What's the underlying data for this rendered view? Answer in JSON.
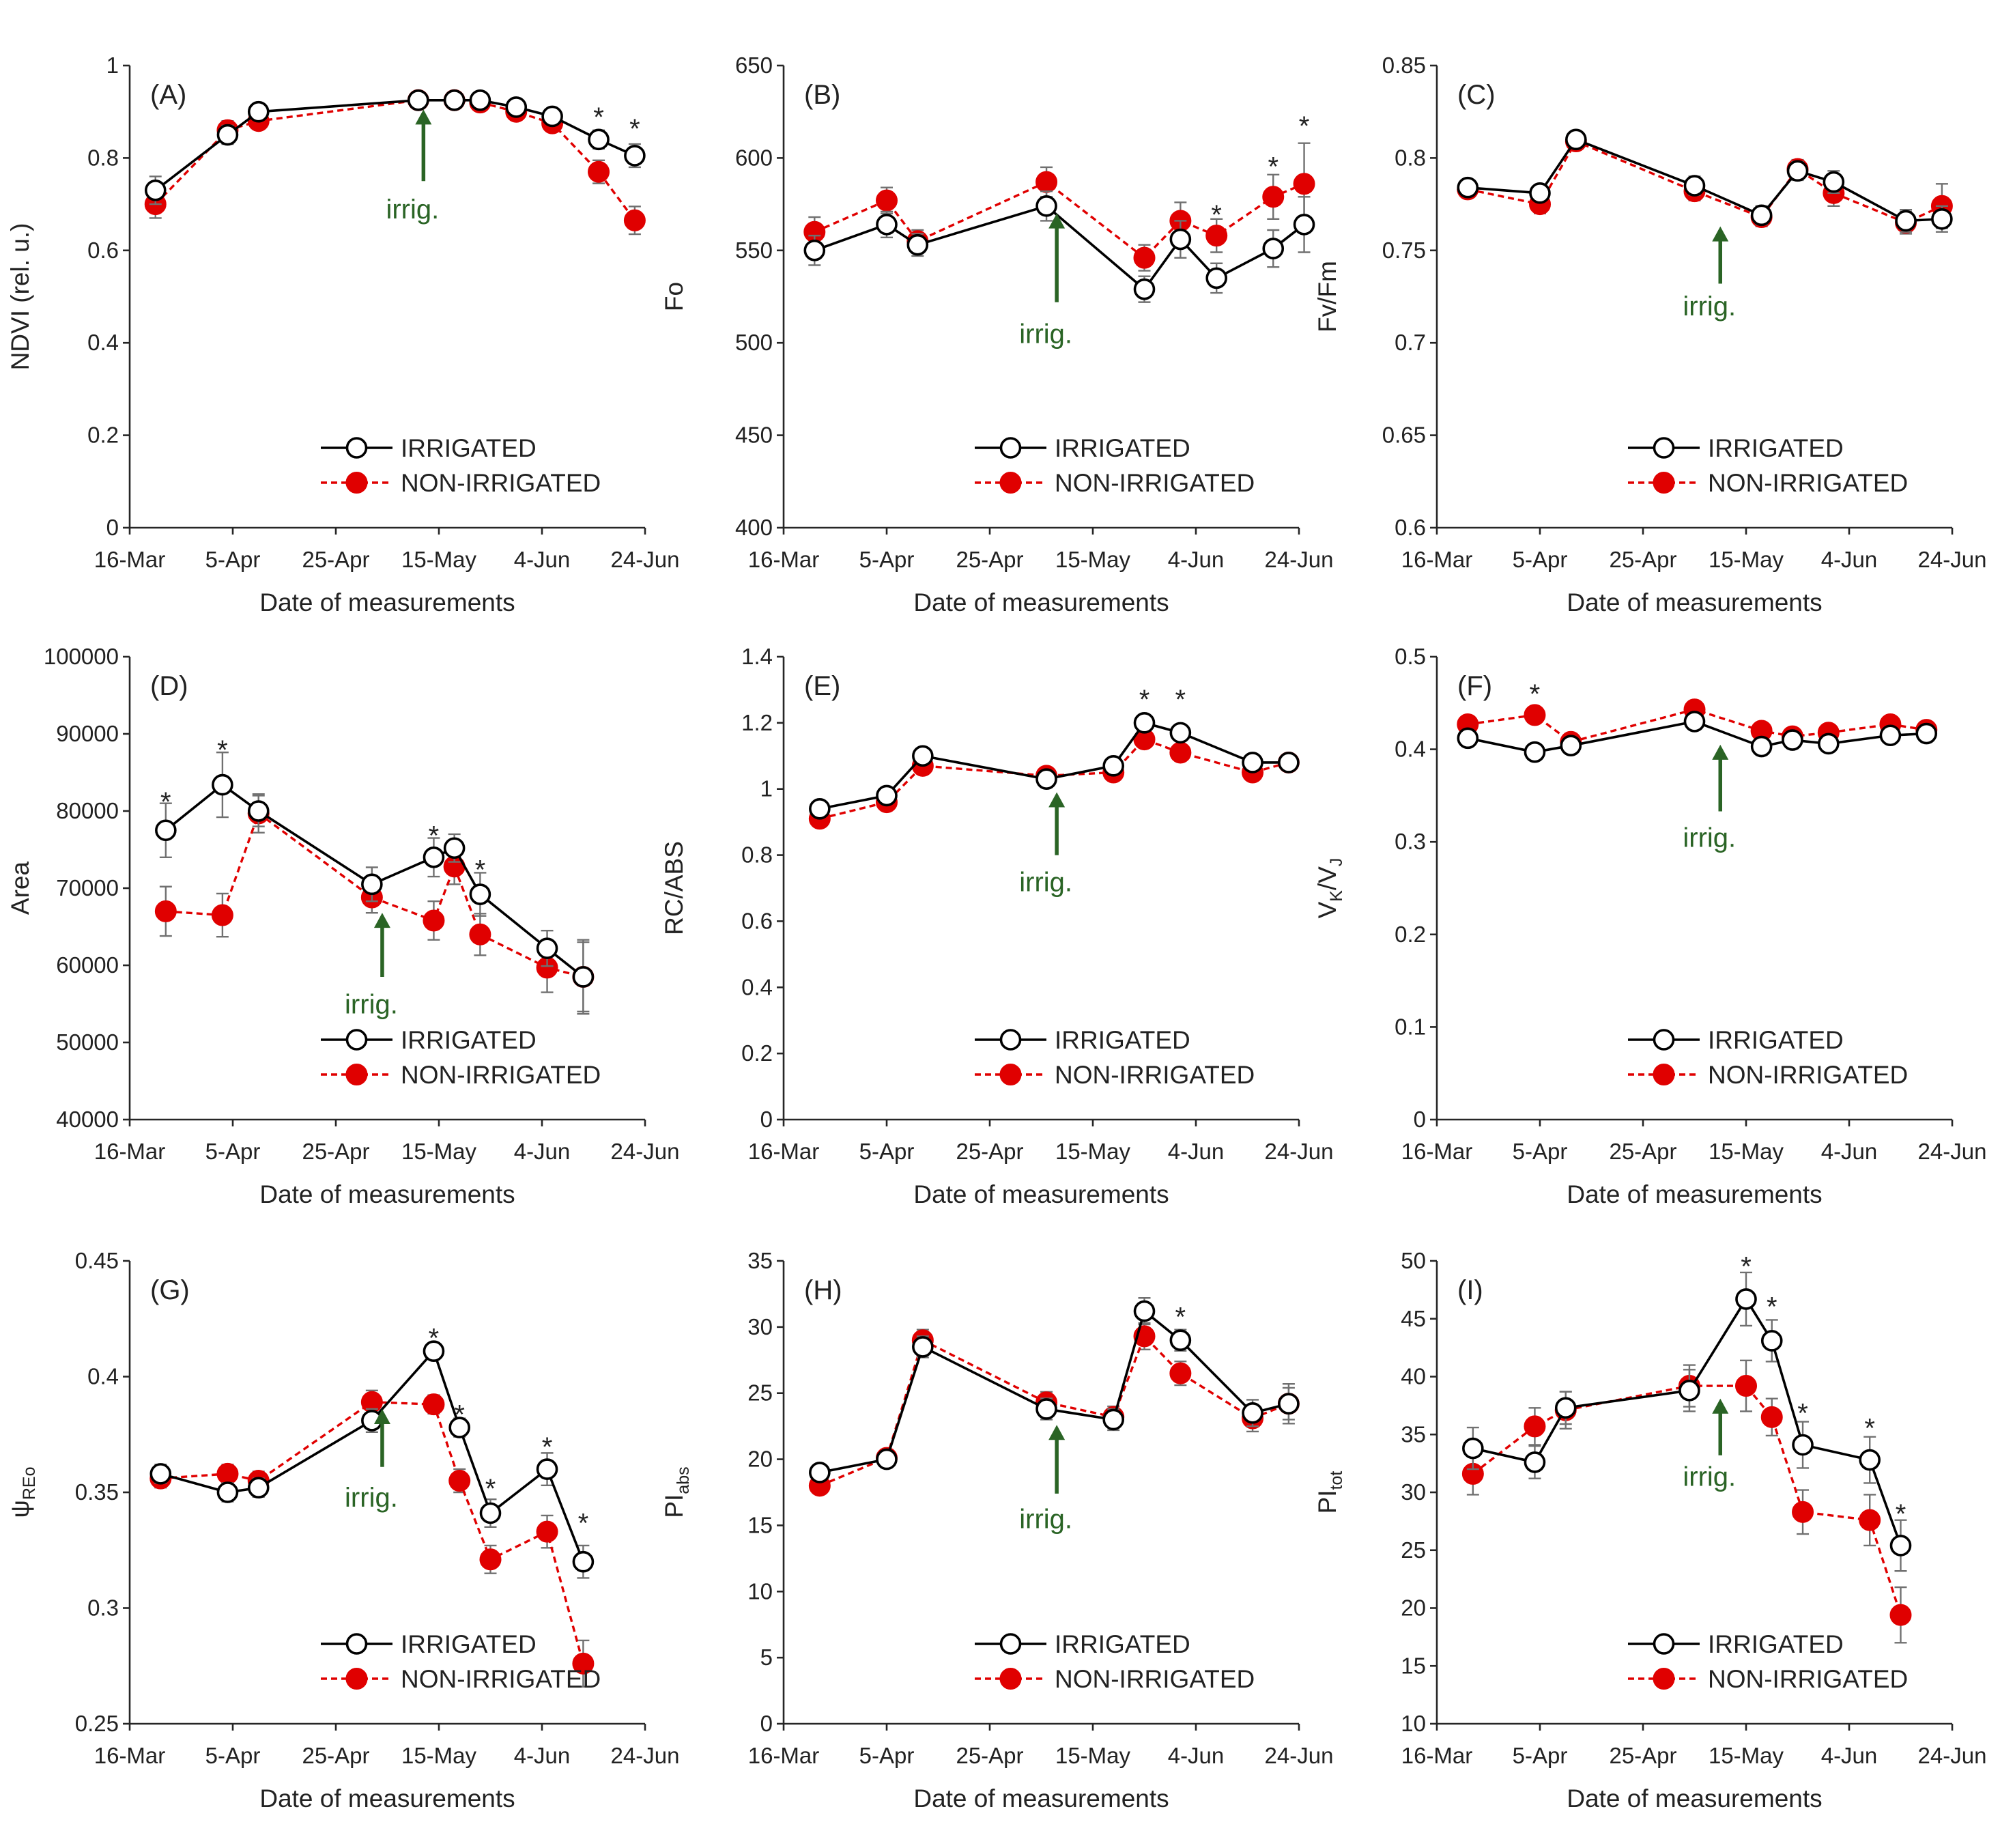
{
  "figure": {
    "x_axis_label": "Date of measurements",
    "x_ticks": [
      "16-Mar",
      "5-Apr",
      "25-Apr",
      "15-May",
      "4-Jun",
      "24-Jun"
    ],
    "legend": {
      "irrigated": "IRRIGATED",
      "non_irrigated": "NON-IRRIGATED"
    },
    "annotation_text": "irrig.",
    "significance_marker": "*",
    "colors": {
      "irrigated_line": "#000000",
      "irrigated_marker_fill": "#ffffff",
      "non_irrigated": "#e00000",
      "arrow": "#2a6425",
      "axis": "#262626",
      "error_bar": "#707070"
    }
  },
  "chart_data": [
    {
      "type": "line",
      "panel": "(A)",
      "ylabel": "NDVI (rel. u.)",
      "ylabel_main": "NDVI (rel. u.)",
      "ylabel_sub": "",
      "ylim": [
        0,
        1
      ],
      "yticks": [
        "0",
        "0.2",
        "0.4",
        "0.6",
        "0.8",
        "1"
      ],
      "ytick_values": [
        0,
        0.2,
        0.4,
        0.6,
        0.8,
        1
      ],
      "xlim": [
        0,
        100
      ],
      "x_tick_days": [
        0,
        20,
        40,
        60,
        80,
        100
      ],
      "series": [
        {
          "name": "IRRIGATED",
          "x": [
            5,
            19,
            25,
            56,
            63,
            68,
            75,
            82,
            91,
            98
          ],
          "y": [
            0.73,
            0.85,
            0.9,
            0.925,
            0.925,
            0.925,
            0.91,
            0.89,
            0.84,
            0.805
          ],
          "err": [
            0.03,
            0.02,
            0.015,
            0.01,
            0.01,
            0.01,
            0.015,
            0.015,
            0.02,
            0.025
          ]
        },
        {
          "name": "NON-IRRIGATED",
          "x": [
            5,
            19,
            25,
            56,
            63,
            68,
            75,
            82,
            91,
            98
          ],
          "y": [
            0.7,
            0.86,
            0.88,
            0.925,
            0.925,
            0.92,
            0.9,
            0.875,
            0.77,
            0.665
          ],
          "err": [
            0.03,
            0.02,
            0.015,
            0.01,
            0.01,
            0.01,
            0.015,
            0.015,
            0.025,
            0.03
          ]
        }
      ],
      "stars": [
        {
          "x": 91,
          "y": 0.895
        },
        {
          "x": 98,
          "y": 0.87
        }
      ],
      "irrigation_arrow": {
        "x": 57,
        "y_top": 0.905,
        "y_bottom": 0.75,
        "label_y": 0.69
      }
    },
    {
      "type": "line",
      "panel": "(B)",
      "ylabel": "Fo",
      "ylabel_main": "Fo",
      "ylabel_sub": "",
      "ylim": [
        400,
        650
      ],
      "yticks": [
        "400",
        "450",
        "500",
        "550",
        "600",
        "650"
      ],
      "ytick_values": [
        400,
        450,
        500,
        550,
        600,
        650
      ],
      "xlim": [
        0,
        100
      ],
      "x_tick_days": [
        0,
        20,
        40,
        60,
        80,
        100
      ],
      "series": [
        {
          "name": "IRRIGATED",
          "x": [
            6,
            20,
            26,
            51,
            70,
            77,
            84,
            95,
            101
          ],
          "y": [
            550,
            564,
            553,
            574,
            529,
            556,
            535,
            551,
            564
          ],
          "err": [
            8,
            7,
            6,
            8,
            7,
            10,
            8,
            10,
            15
          ]
        },
        {
          "name": "NON-IRRIGATED",
          "x": [
            6,
            20,
            26,
            51,
            70,
            77,
            84,
            95,
            101
          ],
          "y": [
            560,
            577,
            555,
            587,
            546,
            566,
            558,
            579,
            586
          ],
          "err": [
            8,
            7,
            6,
            8,
            7,
            10,
            9,
            12,
            22
          ]
        }
      ],
      "stars": [
        {
          "x": 84,
          "y": 571
        },
        {
          "x": 95,
          "y": 597
        },
        {
          "x": 101,
          "y": 619
        }
      ],
      "irrigation_arrow": {
        "x": 53,
        "y_top": 570,
        "y_bottom": 522,
        "label_y": 505
      }
    },
    {
      "type": "line",
      "panel": "(C)",
      "ylabel": "Fv/Fm",
      "ylabel_main": "Fv/Fm",
      "ylabel_sub": "",
      "ylim": [
        0.6,
        0.85
      ],
      "yticks": [
        "0.6",
        "0.65",
        "0.7",
        "0.75",
        "0.8",
        "0.85"
      ],
      "ytick_values": [
        0.6,
        0.65,
        0.7,
        0.75,
        0.8,
        0.85
      ],
      "xlim": [
        0,
        100
      ],
      "x_tick_days": [
        0,
        20,
        40,
        60,
        80,
        100
      ],
      "series": [
        {
          "name": "IRRIGATED",
          "x": [
            6,
            20,
            27,
            50,
            63,
            70,
            77,
            91,
            98
          ],
          "y": [
            0.784,
            0.781,
            0.81,
            0.785,
            0.769,
            0.793,
            0.787,
            0.766,
            0.767
          ],
          "err": [
            0.004,
            0.004,
            0.003,
            0.005,
            0.005,
            0.005,
            0.006,
            0.006,
            0.007
          ]
        },
        {
          "name": "NON-IRRIGATED",
          "x": [
            6,
            20,
            27,
            50,
            63,
            70,
            77,
            91,
            98
          ],
          "y": [
            0.783,
            0.775,
            0.809,
            0.782,
            0.768,
            0.794,
            0.781,
            0.765,
            0.774
          ],
          "err": [
            0.004,
            0.005,
            0.003,
            0.005,
            0.005,
            0.005,
            0.007,
            0.006,
            0.012
          ]
        }
      ],
      "stars": [],
      "irrigation_arrow": {
        "x": 55,
        "y_top": 0.763,
        "y_bottom": 0.732,
        "label_y": 0.72
      }
    },
    {
      "type": "line",
      "panel": "(D)",
      "ylabel": "Area",
      "ylabel_main": "Area",
      "ylabel_sub": "",
      "ylim": [
        40000,
        100000
      ],
      "yticks": [
        "40000",
        "50000",
        "60000",
        "70000",
        "80000",
        "90000",
        "100000"
      ],
      "ytick_values": [
        40000,
        50000,
        60000,
        70000,
        80000,
        90000,
        100000
      ],
      "xlim": [
        0,
        100
      ],
      "x_tick_days": [
        0,
        20,
        40,
        60,
        80,
        100
      ],
      "series": [
        {
          "name": "IRRIGATED",
          "x": [
            7,
            18,
            25,
            47,
            59,
            63,
            68,
            81,
            88
          ],
          "y": [
            77500,
            83400,
            80000,
            70500,
            74000,
            75200,
            69200,
            62200,
            58500
          ],
          "err": [
            3500,
            4200,
            2000,
            2200,
            2500,
            1800,
            2800,
            2300,
            4800
          ]
        },
        {
          "name": "NON-IRRIGATED",
          "x": [
            7,
            18,
            25,
            47,
            59,
            63,
            68,
            81,
            88
          ],
          "y": [
            67000,
            66500,
            79700,
            68800,
            65800,
            72800,
            64000,
            59700,
            58500
          ],
          "err": [
            3200,
            2800,
            2500,
            2000,
            2500,
            2300,
            2700,
            3200,
            4500
          ]
        }
      ],
      "stars": [
        {
          "x": 7,
          "y": 81600
        },
        {
          "x": 18,
          "y": 88300
        },
        {
          "x": 59,
          "y": 77200
        },
        {
          "x": 68,
          "y": 72800
        }
      ],
      "irrigation_arrow": {
        "x": 49,
        "y_top": 66800,
        "y_bottom": 58500,
        "label_y": 55000
      }
    },
    {
      "type": "line",
      "panel": "(E)",
      "ylabel": "RC/ABS",
      "ylabel_main": "RC/ABS",
      "ylabel_sub": "",
      "ylim": [
        0,
        1.4
      ],
      "yticks": [
        "0",
        "0.2",
        "0.4",
        "0.6",
        "0.8",
        "1",
        "1.2",
        "1.4"
      ],
      "ytick_values": [
        0,
        0.2,
        0.4,
        0.6,
        0.8,
        1,
        1.2,
        1.4
      ],
      "xlim": [
        0,
        100
      ],
      "x_tick_days": [
        0,
        20,
        40,
        60,
        80,
        100
      ],
      "series": [
        {
          "name": "IRRIGATED",
          "x": [
            7,
            20,
            27,
            51,
            64,
            70,
            77,
            91,
            98
          ],
          "y": [
            0.94,
            0.98,
            1.1,
            1.03,
            1.07,
            1.2,
            1.17,
            1.08,
            1.08
          ],
          "err": [
            0.015,
            0.015,
            0.015,
            0.015,
            0.015,
            0.02,
            0.02,
            0.015,
            0.02
          ]
        },
        {
          "name": "NON-IRRIGATED",
          "x": [
            7,
            20,
            27,
            51,
            64,
            70,
            77,
            91,
            98
          ],
          "y": [
            0.91,
            0.96,
            1.07,
            1.04,
            1.05,
            1.15,
            1.11,
            1.05,
            1.08
          ],
          "err": [
            0.015,
            0.015,
            0.015,
            0.015,
            0.015,
            0.02,
            0.02,
            0.015,
            0.02
          ]
        }
      ],
      "stars": [
        {
          "x": 70,
          "y": 1.28
        },
        {
          "x": 77,
          "y": 1.28
        }
      ],
      "irrigation_arrow": {
        "x": 53,
        "y_top": 0.99,
        "y_bottom": 0.8,
        "label_y": 0.72
      }
    },
    {
      "type": "line",
      "panel": "(F)",
      "ylabel": "VK/VJ",
      "ylabel_main": "V",
      "ylabel_sub": "K",
      "ylabel_main2": "/V",
      "ylabel_sub2": "J",
      "ylim": [
        0,
        0.5
      ],
      "yticks": [
        "0",
        "0.1",
        "0.2",
        "0.3",
        "0.4",
        "0.5"
      ],
      "ytick_values": [
        0,
        0.1,
        0.2,
        0.3,
        0.4,
        0.5
      ],
      "xlim": [
        0,
        100
      ],
      "x_tick_days": [
        0,
        20,
        40,
        60,
        80,
        100
      ],
      "series": [
        {
          "name": "IRRIGATED",
          "x": [
            6,
            19,
            26,
            50,
            63,
            69,
            76,
            88,
            95
          ],
          "y": [
            0.412,
            0.397,
            0.404,
            0.43,
            0.403,
            0.41,
            0.406,
            0.415,
            0.417
          ],
          "err": [
            0.005,
            0.005,
            0.005,
            0.005,
            0.005,
            0.005,
            0.005,
            0.005,
            0.005
          ]
        },
        {
          "name": "NON-IRRIGATED",
          "x": [
            6,
            19,
            26,
            50,
            63,
            69,
            76,
            88,
            95
          ],
          "y": [
            0.427,
            0.437,
            0.408,
            0.443,
            0.42,
            0.414,
            0.418,
            0.427,
            0.421
          ],
          "err": [
            0.005,
            0.005,
            0.005,
            0.005,
            0.005,
            0.005,
            0.005,
            0.005,
            0.005
          ]
        }
      ],
      "stars": [
        {
          "x": 19,
          "y": 0.463
        }
      ],
      "irrigation_arrow": {
        "x": 55,
        "y_top": 0.405,
        "y_bottom": 0.333,
        "label_y": 0.305
      }
    },
    {
      "type": "line",
      "panel": "(G)",
      "ylabel": "ψREo",
      "ylabel_main": "ψ",
      "ylabel_sub": "REo",
      "ylim": [
        0.25,
        0.45
      ],
      "yticks": [
        "0.25",
        "0.3",
        "0.35",
        "0.4",
        "0.45"
      ],
      "ytick_values": [
        0.25,
        0.3,
        0.35,
        0.4,
        0.45
      ],
      "xlim": [
        0,
        100
      ],
      "x_tick_days": [
        0,
        20,
        40,
        60,
        80,
        100
      ],
      "series": [
        {
          "name": "IRRIGATED",
          "x": [
            6,
            19,
            25,
            47,
            59,
            64,
            70,
            81,
            88
          ],
          "y": [
            0.358,
            0.35,
            0.352,
            0.381,
            0.411,
            0.378,
            0.341,
            0.36,
            0.32
          ],
          "err": [
            0.004,
            0.004,
            0.004,
            0.005,
            0.003,
            0.004,
            0.006,
            0.007,
            0.007
          ]
        },
        {
          "name": "NON-IRRIGATED",
          "x": [
            6,
            19,
            25,
            47,
            59,
            64,
            70,
            81,
            88
          ],
          "y": [
            0.356,
            0.358,
            0.355,
            0.389,
            0.388,
            0.355,
            0.321,
            0.333,
            0.276
          ],
          "err": [
            0.004,
            0.004,
            0.004,
            0.005,
            0.004,
            0.005,
            0.006,
            0.007,
            0.01
          ]
        }
      ],
      "stars": [
        {
          "x": 59,
          "y": 0.418
        },
        {
          "x": 64,
          "y": 0.385
        },
        {
          "x": 70,
          "y": 0.353
        },
        {
          "x": 81,
          "y": 0.371
        },
        {
          "x": 88,
          "y": 0.338
        }
      ],
      "irrigation_arrow": {
        "x": 49,
        "y_top": 0.386,
        "y_bottom": 0.361,
        "label_y": 0.348
      }
    },
    {
      "type": "line",
      "panel": "(H)",
      "ylabel": "PIabs",
      "ylabel_main": "PI",
      "ylabel_sub": "abs",
      "ylim": [
        0,
        35
      ],
      "yticks": [
        "0",
        "5",
        "10",
        "15",
        "20",
        "25",
        "30",
        "35"
      ],
      "ytick_values": [
        0,
        5,
        10,
        15,
        20,
        25,
        30,
        35
      ],
      "xlim": [
        0,
        100
      ],
      "x_tick_days": [
        0,
        20,
        40,
        60,
        80,
        100
      ],
      "series": [
        {
          "name": "IRRIGATED",
          "x": [
            7,
            20,
            27,
            51,
            64,
            70,
            77,
            91,
            98
          ],
          "y": [
            19.0,
            20.0,
            28.5,
            23.8,
            23.0,
            31.2,
            29.0,
            23.5,
            24.2
          ],
          "err": [
            0.5,
            0.5,
            0.8,
            0.8,
            0.8,
            1.0,
            0.8,
            1.0,
            1.2
          ]
        },
        {
          "name": "NON-IRRIGATED",
          "x": [
            7,
            20,
            27,
            51,
            64,
            70,
            77,
            91,
            98
          ],
          "y": [
            18.0,
            20.1,
            29.0,
            24.3,
            23.2,
            29.3,
            26.5,
            23.1,
            24.2
          ],
          "err": [
            0.5,
            0.5,
            0.8,
            0.8,
            0.8,
            1.0,
            0.9,
            1.0,
            1.5
          ]
        }
      ],
      "stars": [
        {
          "x": 77,
          "y": 31.0
        }
      ],
      "irrigation_arrow": {
        "x": 53,
        "y_top": 22.6,
        "y_bottom": 17.4,
        "label_y": 15.5
      }
    },
    {
      "type": "line",
      "panel": "(I)",
      "ylabel": "PItot",
      "ylabel_main": "PI",
      "ylabel_sub": "tot",
      "ylim": [
        10,
        50
      ],
      "yticks": [
        "10",
        "15",
        "20",
        "25",
        "30",
        "35",
        "40",
        "45",
        "50"
      ],
      "ytick_values": [
        10,
        15,
        20,
        25,
        30,
        35,
        40,
        45,
        50
      ],
      "xlim": [
        0,
        100
      ],
      "x_tick_days": [
        0,
        20,
        40,
        60,
        80,
        100
      ],
      "series": [
        {
          "name": "IRRIGATED",
          "x": [
            7,
            19,
            25,
            49,
            60,
            65,
            71,
            84,
            90
          ],
          "y": [
            33.8,
            32.6,
            37.3,
            38.8,
            46.7,
            43.1,
            34.1,
            32.8,
            25.4
          ],
          "err": [
            1.8,
            1.4,
            1.4,
            1.8,
            2.3,
            1.8,
            2.0,
            2.0,
            2.2
          ]
        },
        {
          "name": "NON-IRRIGATED",
          "x": [
            7,
            19,
            25,
            49,
            60,
            65,
            71,
            84,
            90
          ],
          "y": [
            31.6,
            35.7,
            37.1,
            39.2,
            39.2,
            36.5,
            28.3,
            27.6,
            19.4
          ],
          "err": [
            1.8,
            1.6,
            1.6,
            1.8,
            2.2,
            1.6,
            1.9,
            2.2,
            2.4
          ]
        }
      ],
      "stars": [
        {
          "x": 60,
          "y": 49.8
        },
        {
          "x": 65,
          "y": 46.3
        },
        {
          "x": 71,
          "y": 37.1
        },
        {
          "x": 84,
          "y": 35.8
        },
        {
          "x": 90,
          "y": 28.4
        }
      ],
      "irrigation_arrow": {
        "x": 55,
        "y_top": 38.1,
        "y_bottom": 33.2,
        "label_y": 31.4
      }
    }
  ]
}
